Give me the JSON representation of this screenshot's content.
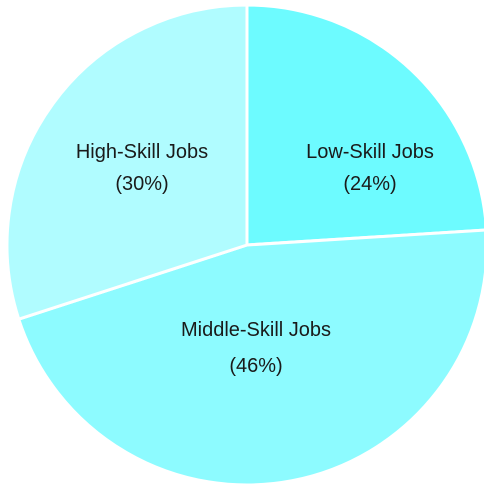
{
  "chart_data": {
    "type": "pie",
    "title": "",
    "start_angle_deg": 0,
    "direction": "clockwise",
    "slices": [
      {
        "label": "Low-Skill Jobs",
        "display_value": "(24%)",
        "value": 24,
        "color": "#6dfbff"
      },
      {
        "label": "Middle-Skill Jobs",
        "display_value": "(46%)",
        "value": 46,
        "color": "#8dfbff"
      },
      {
        "label": "High-Skill Jobs",
        "display_value": "(30%)",
        "value": 30,
        "color": "#b0fcff"
      }
    ],
    "legend": "none",
    "labels_inside_slices": true
  }
}
